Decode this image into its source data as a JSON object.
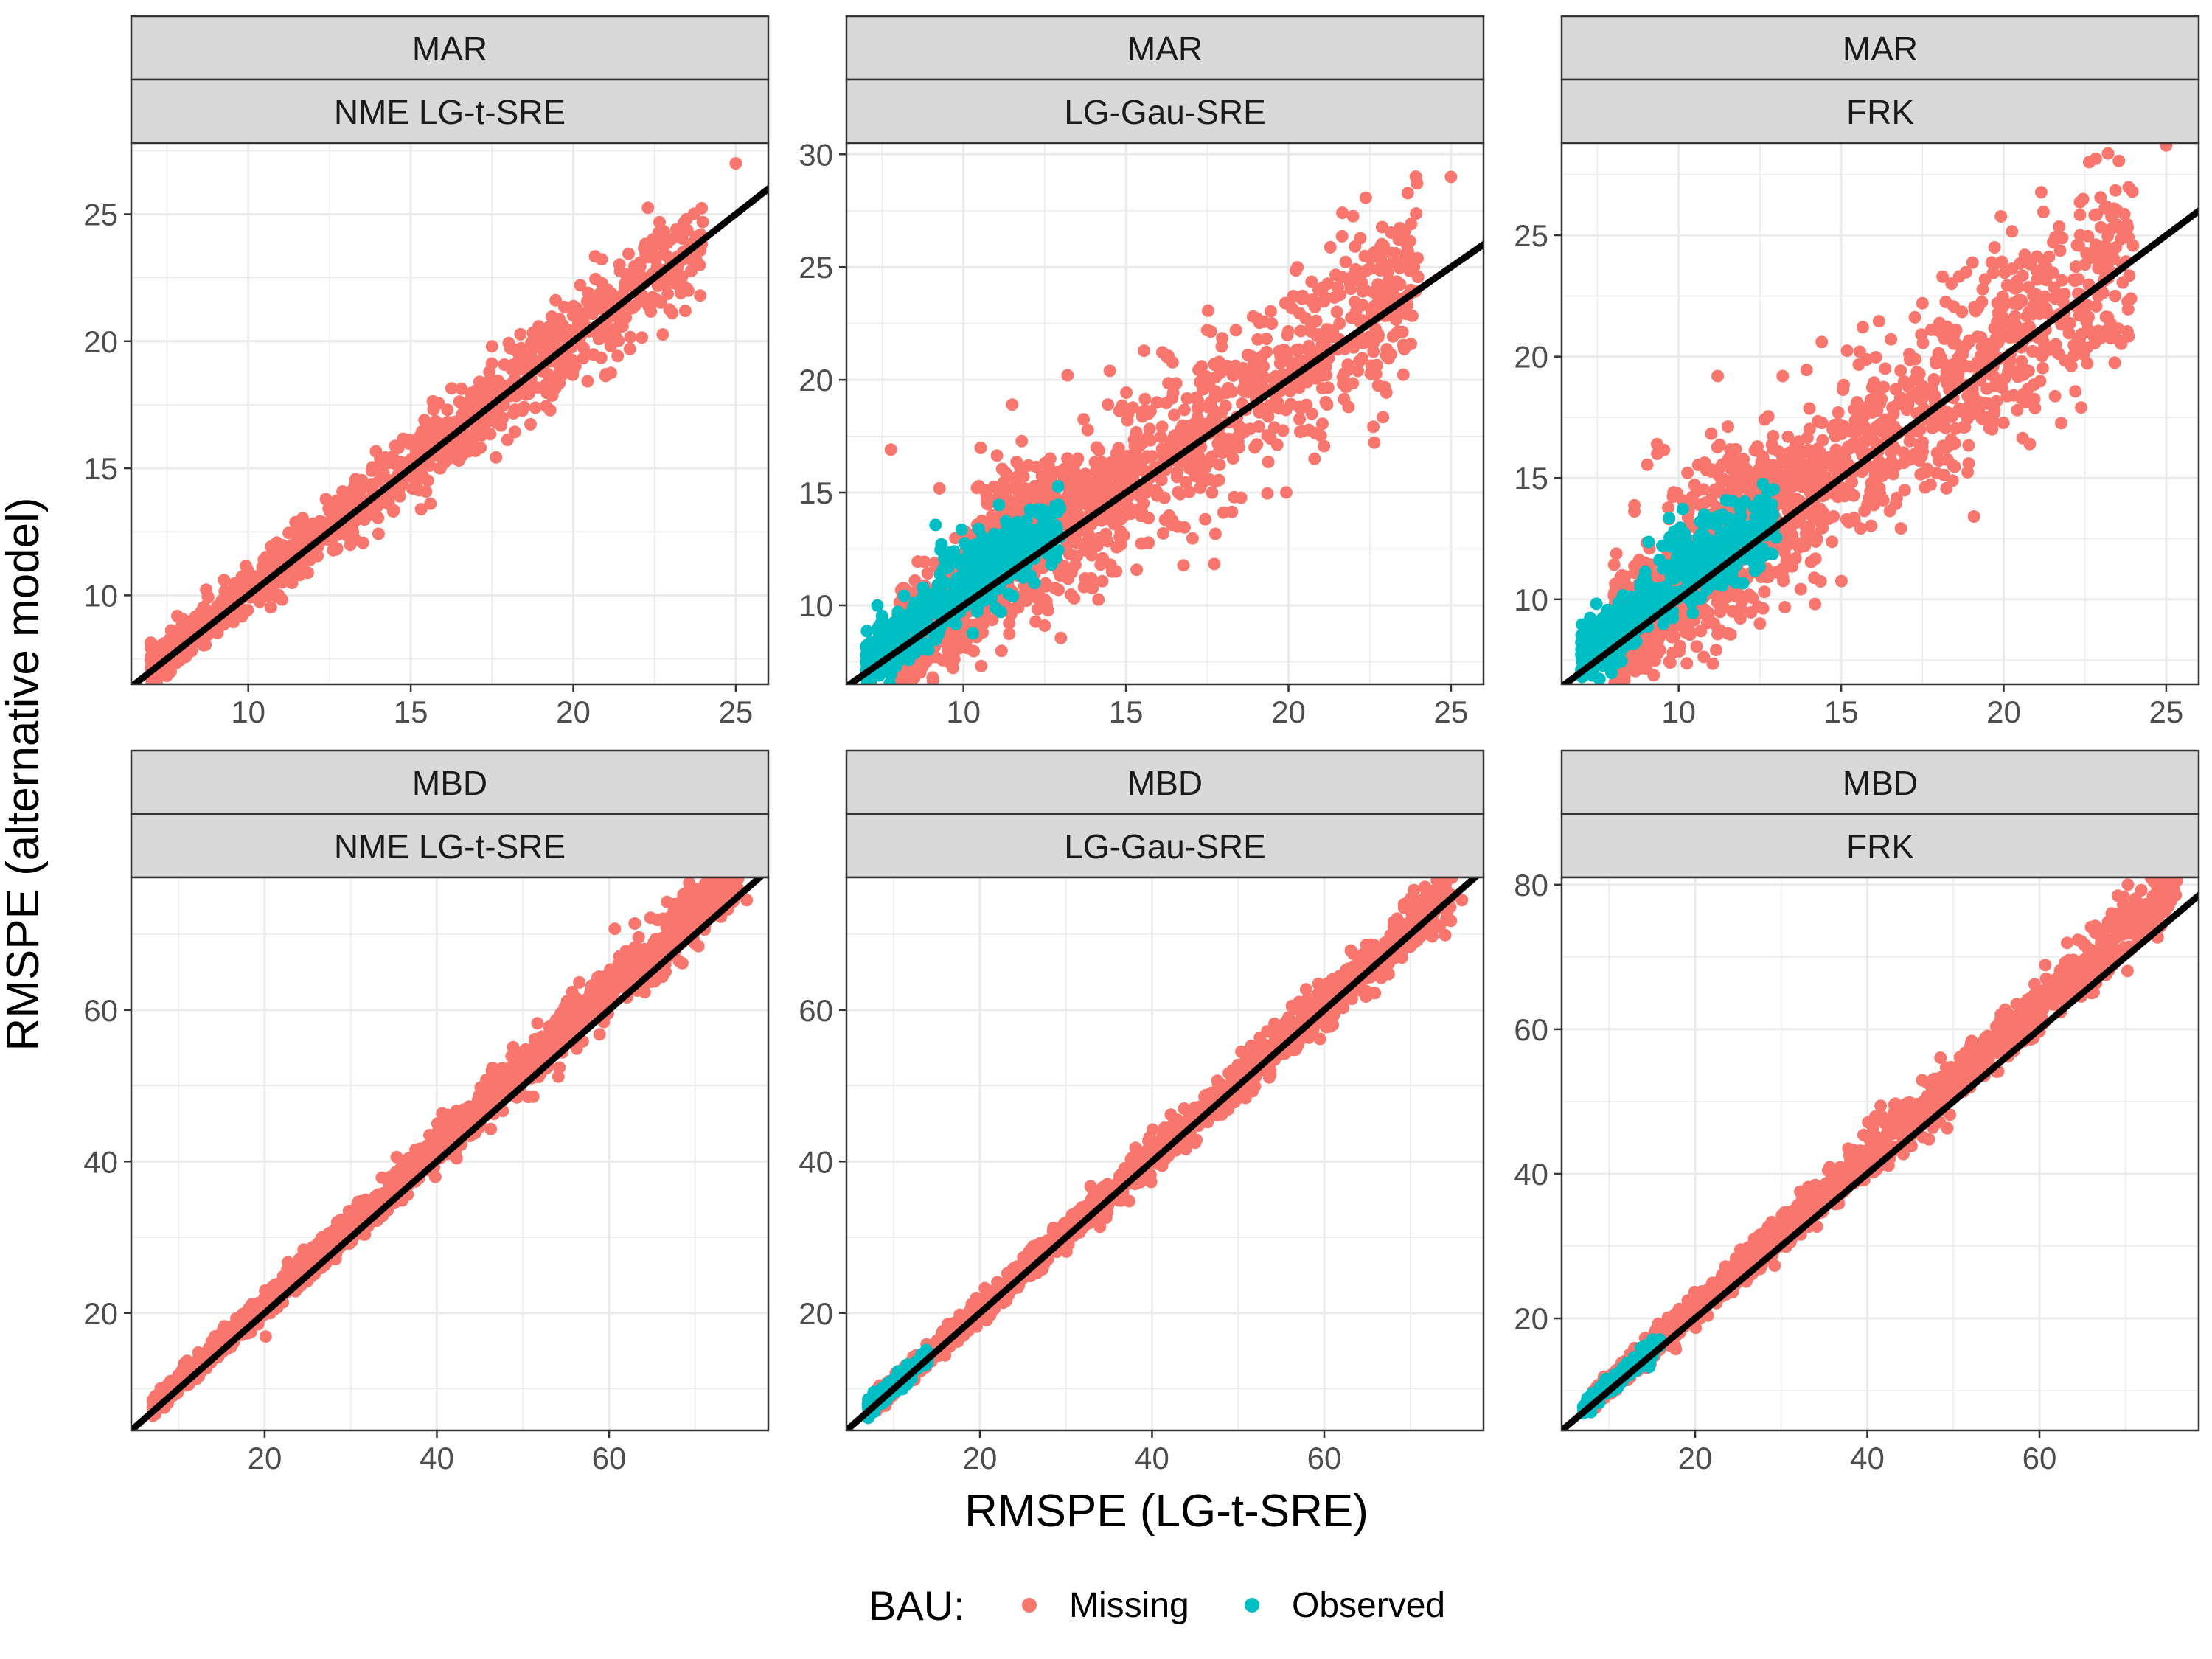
{
  "figure": {
    "y_axis_label": "RMSPE (alternative model)",
    "x_axis_label": "RMSPE (LG-t-SRE)",
    "legend": {
      "title": "BAU:",
      "items": [
        {
          "label": "Missing",
          "color": "#F8766D"
        },
        {
          "label": "Observed",
          "color": "#00BFC4"
        }
      ]
    },
    "reference_line": "y = x",
    "line_color": "#000000",
    "strip_fill": "#D9D9D9"
  },
  "chart_data": [
    {
      "type": "scatter",
      "row_strip": "MAR",
      "col_strip": "NME LG-t-SRE",
      "xlim": [
        6.4,
        26.0
      ],
      "ylim": [
        6.5,
        27.8
      ],
      "xticks": [
        10,
        15,
        20,
        25
      ],
      "yticks": [
        10,
        15,
        20,
        25
      ],
      "series": [
        {
          "name": "Missing",
          "n": 1100,
          "x_range": [
            7,
            24
          ],
          "slope": 1.0,
          "intercept": 0.1,
          "spread": [
            0.1,
            0.04
          ],
          "clusters": []
        },
        {
          "name": "Observed",
          "n": 0
        }
      ],
      "outliers": [
        {
          "x": 25.0,
          "y": 27.0
        },
        {
          "x": 23.7,
          "y": 23.5
        },
        {
          "x": 22.5,
          "y": 23.8
        },
        {
          "x": 22.8,
          "y": 22.8
        },
        {
          "x": 21.0,
          "y": 18.7
        },
        {
          "x": 17.5,
          "y": 19.8
        }
      ]
    },
    {
      "type": "scatter",
      "row_strip": "MAR",
      "col_strip": "LG-Gau-SRE",
      "xlim": [
        6.4,
        26.0
      ],
      "ylim": [
        6.5,
        30.5
      ],
      "xticks": [
        10,
        15,
        20,
        25
      ],
      "yticks": [
        10,
        15,
        20,
        25,
        30
      ],
      "series": [
        {
          "name": "Missing",
          "n": 1300,
          "x_range": [
            8,
            24
          ],
          "slope": 1.0,
          "intercept": 0.3,
          "spread": [
            0.8,
            0.06
          ],
          "clusters": [
            [
              12.5,
              14.8,
              1.4,
              1.0,
              160
            ]
          ]
        },
        {
          "name": "Observed",
          "n": 420,
          "x_range": [
            7,
            13
          ],
          "slope": 1.0,
          "intercept": 0.6,
          "spread": [
            0.25,
            0.05
          ],
          "clusters": [
            [
              10.8,
              12.3,
              0.8,
              0.6,
              70
            ]
          ]
        }
      ],
      "outliers": [
        {
          "x": 25.0,
          "y": 29.0
        },
        {
          "x": 17.5,
          "y": 22.2
        },
        {
          "x": 11.5,
          "y": 18.9
        },
        {
          "x": 13.2,
          "y": 20.2
        },
        {
          "x": 14.5,
          "y": 20.4
        },
        {
          "x": 12.5,
          "y": 9.1
        },
        {
          "x": 20.8,
          "y": 16.5
        }
      ]
    },
    {
      "type": "scatter",
      "row_strip": "MAR",
      "col_strip": "FRK",
      "xlim": [
        6.4,
        26.0
      ],
      "ylim": [
        6.5,
        28.8
      ],
      "xticks": [
        10,
        15,
        20,
        25
      ],
      "yticks": [
        10,
        15,
        20,
        25
      ],
      "series": [
        {
          "name": "Missing",
          "n": 1300,
          "x_range": [
            8,
            24
          ],
          "slope": 1.0,
          "intercept": 0.3,
          "spread": [
            0.8,
            0.06
          ],
          "clusters": [
            [
              12.5,
              14.8,
              1.4,
              1.0,
              160
            ]
          ]
        },
        {
          "name": "Observed",
          "n": 420,
          "x_range": [
            7,
            13
          ],
          "slope": 1.0,
          "intercept": 0.6,
          "spread": [
            0.25,
            0.05
          ],
          "clusters": [
            [
              10.8,
              12.3,
              0.8,
              0.6,
              70
            ]
          ]
        }
      ],
      "outliers": [
        {
          "x": 25.0,
          "y": 28.7
        },
        {
          "x": 17.5,
          "y": 22.2
        },
        {
          "x": 11.2,
          "y": 19.2
        },
        {
          "x": 13.2,
          "y": 19.2
        },
        {
          "x": 14.4,
          "y": 20.6
        },
        {
          "x": 12.5,
          "y": 9.0
        },
        {
          "x": 20.8,
          "y": 16.4
        }
      ]
    },
    {
      "type": "scatter",
      "row_strip": "MBD",
      "col_strip": "NME LG-t-SRE",
      "xlim": [
        4.5,
        78.5
      ],
      "ylim": [
        4.5,
        77.5
      ],
      "xticks": [
        20,
        40,
        60
      ],
      "yticks": [
        20,
        40,
        60
      ],
      "series": [
        {
          "name": "Missing",
          "n": 1600,
          "x_range": [
            7,
            75
          ],
          "slope": 1.04,
          "intercept": 0.3,
          "spread": [
            0.4,
            0.025
          ],
          "clusters": []
        },
        {
          "name": "Observed",
          "n": 0
        }
      ],
      "outliers": [
        {
          "x": 76.0,
          "y": 74.5
        }
      ]
    },
    {
      "type": "scatter",
      "row_strip": "MBD",
      "col_strip": "LG-Gau-SRE",
      "xlim": [
        4.5,
        78.5
      ],
      "ylim": [
        4.5,
        77.5
      ],
      "xticks": [
        20,
        40,
        60
      ],
      "yticks": [
        20,
        40,
        60
      ],
      "series": [
        {
          "name": "Missing",
          "n": 1600,
          "x_range": [
            8,
            75
          ],
          "slope": 1.0,
          "intercept": 0.5,
          "spread": [
            0.4,
            0.02
          ],
          "clusters": []
        },
        {
          "name": "Observed",
          "n": 200,
          "x_range": [
            7,
            14
          ],
          "slope": 1.0,
          "intercept": 0.4,
          "spread": [
            0.4,
            0.02
          ],
          "clusters": []
        }
      ],
      "outliers": [
        {
          "x": 76.0,
          "y": 74.5
        }
      ]
    },
    {
      "type": "scatter",
      "row_strip": "MBD",
      "col_strip": "FRK",
      "xlim": [
        4.5,
        78.5
      ],
      "ylim": [
        4.5,
        81.0
      ],
      "xticks": [
        20,
        40,
        60
      ],
      "yticks": [
        20,
        40,
        60,
        80
      ],
      "series": [
        {
          "name": "Missing",
          "n": 1600,
          "x_range": [
            8,
            76
          ],
          "slope": 1.05,
          "intercept": 0.3,
          "spread": [
            0.5,
            0.025
          ],
          "clusters": []
        },
        {
          "name": "Observed",
          "n": 200,
          "x_range": [
            7,
            16
          ],
          "slope": 1.03,
          "intercept": 0.3,
          "spread": [
            0.4,
            0.02
          ],
          "clusters": []
        }
      ],
      "outliers": [
        {
          "x": 75.0,
          "y": 77.0
        }
      ]
    }
  ]
}
